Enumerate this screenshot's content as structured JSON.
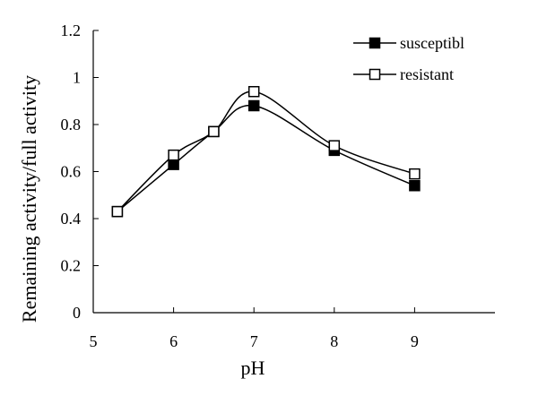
{
  "chart_data": {
    "type": "line",
    "xlabel": "pH",
    "ylabel": "Remaining activity/full activity",
    "xlim": [
      5,
      10
    ],
    "ylim": [
      0,
      1.2
    ],
    "xticks": [
      5,
      6,
      7,
      8,
      9
    ],
    "yticks": [
      0,
      0.2,
      0.4,
      0.6,
      0.8,
      1,
      1.2
    ],
    "xtick_labels": [
      "5",
      "6",
      "7",
      "8",
      "9"
    ],
    "ytick_labels": [
      "0",
      "0.2",
      "0.4",
      "0.6",
      "0.8",
      "1",
      "1.2"
    ],
    "smooth": true,
    "grid": false,
    "legend_position": "top-right",
    "series": [
      {
        "name": "susceptibl",
        "marker": "filled-square",
        "x": [
          5.3,
          6,
          6.5,
          7,
          8,
          9
        ],
        "y": [
          0.43,
          0.63,
          0.77,
          0.88,
          0.69,
          0.54
        ]
      },
      {
        "name": "resistant",
        "marker": "open-square",
        "x": [
          5.3,
          6,
          6.5,
          7,
          8,
          9
        ],
        "y": [
          0.43,
          0.67,
          0.77,
          0.94,
          0.71,
          0.59
        ]
      }
    ]
  }
}
